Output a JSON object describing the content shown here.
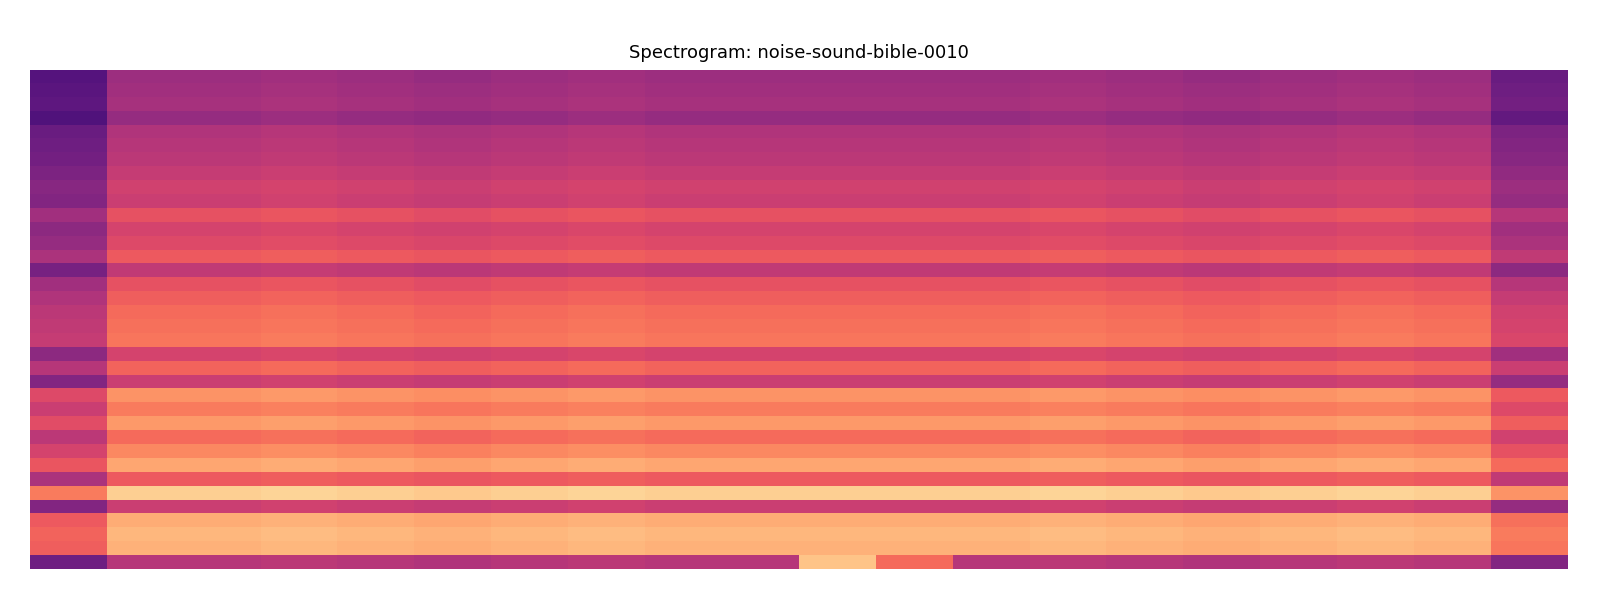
{
  "chart_data": {
    "type": "heatmap",
    "title": "Spectrogram: noise-sound-bible-0010",
    "tick_labels": false,
    "color_range": [
      -80,
      0
    ],
    "cells": [
      [
        -59,
        -45,
        -45,
        -44,
        -45,
        -46,
        -45,
        -44,
        -45,
        -45,
        -45,
        -45,
        -45,
        -44,
        -45,
        -46,
        -45,
        -44,
        -45,
        -55
      ],
      [
        -58,
        -44,
        -44,
        -43,
        -44,
        -45,
        -44,
        -43,
        -44,
        -44,
        -44,
        -44,
        -44,
        -43,
        -44,
        -45,
        -44,
        -43,
        -44,
        -54
      ],
      [
        -57,
        -43,
        -43,
        -42,
        -43,
        -44,
        -43,
        -42,
        -43,
        -43,
        -43,
        -43,
        -43,
        -42,
        -43,
        -44,
        -43,
        -42,
        -43,
        -53
      ],
      [
        -60,
        -46,
        -46,
        -45,
        -46,
        -47,
        -46,
        -45,
        -46,
        -46,
        -46,
        -46,
        -46,
        -45,
        -46,
        -47,
        -46,
        -45,
        -46,
        -56
      ],
      [
        -55,
        -41,
        -41,
        -40,
        -41,
        -42,
        -41,
        -40,
        -41,
        -41,
        -41,
        -41,
        -41,
        -40,
        -41,
        -42,
        -41,
        -40,
        -41,
        -51
      ],
      [
        -54,
        -40,
        -40,
        -39,
        -40,
        -41,
        -40,
        -39,
        -40,
        -40,
        -40,
        -40,
        -40,
        -39,
        -40,
        -41,
        -40,
        -39,
        -40,
        -50
      ],
      [
        -53,
        -39,
        -39,
        -38,
        -39,
        -40,
        -39,
        -38,
        -39,
        -39,
        -39,
        -39,
        -39,
        -38,
        -39,
        -40,
        -39,
        -38,
        -39,
        -49
      ],
      [
        -51,
        -37,
        -37,
        -36,
        -37,
        -38,
        -37,
        -36,
        -37,
        -37,
        -37,
        -37,
        -37,
        -36,
        -37,
        -38,
        -37,
        -36,
        -37,
        -47
      ],
      [
        -49,
        -35,
        -35,
        -34,
        -35,
        -36,
        -35,
        -34,
        -35,
        -35,
        -35,
        -35,
        -35,
        -34,
        -35,
        -36,
        -35,
        -34,
        -35,
        -45
      ],
      [
        -50,
        -36,
        -36,
        -35,
        -36,
        -37,
        -36,
        -35,
        -36,
        -36,
        -36,
        -36,
        -36,
        -35,
        -36,
        -37,
        -36,
        -35,
        -36,
        -46
      ],
      [
        -44,
        -30,
        -30,
        -29,
        -30,
        -31,
        -30,
        -29,
        -30,
        -30,
        -30,
        -30,
        -30,
        -29,
        -30,
        -31,
        -30,
        -29,
        -30,
        -40
      ],
      [
        -48,
        -34,
        -34,
        -33,
        -34,
        -35,
        -34,
        -33,
        -34,
        -34,
        -34,
        -34,
        -34,
        -33,
        -34,
        -35,
        -34,
        -33,
        -34,
        -44
      ],
      [
        -46,
        -32,
        -32,
        -31,
        -32,
        -33,
        -32,
        -31,
        -32,
        -32,
        -32,
        -32,
        -32,
        -31,
        -32,
        -33,
        -32,
        -31,
        -32,
        -42
      ],
      [
        -42,
        -28,
        -28,
        -27,
        -28,
        -29,
        -28,
        -27,
        -28,
        -28,
        -28,
        -28,
        -28,
        -27,
        -28,
        -29,
        -28,
        -27,
        -28,
        -38
      ],
      [
        -52,
        -38,
        -38,
        -37,
        -38,
        -39,
        -38,
        -37,
        -38,
        -38,
        -38,
        -38,
        -38,
        -37,
        -38,
        -39,
        -38,
        -37,
        -38,
        -48
      ],
      [
        -44,
        -30,
        -30,
        -29,
        -30,
        -31,
        -30,
        -29,
        -30,
        -30,
        -30,
        -30,
        -30,
        -29,
        -30,
        -31,
        -30,
        -29,
        -30,
        -40
      ],
      [
        -41,
        -27,
        -27,
        -26,
        -27,
        -28,
        -27,
        -26,
        -27,
        -27,
        -27,
        -27,
        -27,
        -26,
        -27,
        -28,
        -27,
        -26,
        -27,
        -37
      ],
      [
        -39,
        -25,
        -25,
        -24,
        -25,
        -26,
        -25,
        -24,
        -25,
        -25,
        -25,
        -25,
        -25,
        -24,
        -25,
        -26,
        -25,
        -24,
        -25,
        -35
      ],
      [
        -38,
        -24,
        -24,
        -23,
        -24,
        -25,
        -24,
        -23,
        -24,
        -24,
        -24,
        -24,
        -24,
        -23,
        -24,
        -25,
        -24,
        -23,
        -24,
        -34
      ],
      [
        -37,
        -23,
        -23,
        -22,
        -23,
        -24,
        -23,
        -22,
        -23,
        -23,
        -23,
        -23,
        -23,
        -22,
        -23,
        -24,
        -23,
        -22,
        -23,
        -33
      ],
      [
        -48,
        -34,
        -34,
        -33,
        -34,
        -35,
        -34,
        -33,
        -34,
        -34,
        -34,
        -34,
        -34,
        -33,
        -34,
        -35,
        -34,
        -33,
        -34,
        -44
      ],
      [
        -40,
        -26,
        -26,
        -25,
        -26,
        -27,
        -26,
        -25,
        -26,
        -26,
        -26,
        -26,
        -26,
        -25,
        -26,
        -27,
        -26,
        -25,
        -26,
        -36
      ],
      [
        -50,
        -36,
        -36,
        -35,
        -36,
        -37,
        -36,
        -35,
        -36,
        -36,
        -36,
        -36,
        -36,
        -35,
        -36,
        -37,
        -36,
        -35,
        -36,
        -46
      ],
      [
        -32,
        -18,
        -18,
        -17,
        -18,
        -19,
        -18,
        -17,
        -18,
        -18,
        -18,
        -18,
        -18,
        -17,
        -18,
        -19,
        -18,
        -17,
        -18,
        -28
      ],
      [
        -36,
        -22,
        -22,
        -21,
        -22,
        -23,
        -22,
        -21,
        -22,
        -22,
        -22,
        -22,
        -22,
        -21,
        -22,
        -23,
        -22,
        -21,
        -22,
        -32
      ],
      [
        -31,
        -17,
        -17,
        -16,
        -17,
        -18,
        -17,
        -16,
        -17,
        -17,
        -17,
        -17,
        -17,
        -16,
        -17,
        -18,
        -17,
        -16,
        -17,
        -27
      ],
      [
        -39,
        -25,
        -25,
        -24,
        -25,
        -26,
        -25,
        -24,
        -25,
        -25,
        -25,
        -25,
        -25,
        -24,
        -25,
        -26,
        -25,
        -24,
        -25,
        -35
      ],
      [
        -34,
        -20,
        -20,
        -19,
        -20,
        -21,
        -20,
        -19,
        -20,
        -20,
        -20,
        -20,
        -20,
        -19,
        -20,
        -21,
        -20,
        -19,
        -20,
        -30
      ],
      [
        -29,
        -15,
        -15,
        -14,
        -15,
        -16,
        -15,
        -14,
        -15,
        -15,
        -15,
        -15,
        -15,
        -14,
        -15,
        -16,
        -15,
        -14,
        -15,
        -25
      ],
      [
        -42,
        -28,
        -28,
        -27,
        -28,
        -29,
        -28,
        -27,
        -28,
        -28,
        -28,
        -28,
        -28,
        -27,
        -28,
        -29,
        -28,
        -27,
        -28,
        -38
      ],
      [
        -22,
        -8,
        -8,
        -7,
        -8,
        -9,
        -8,
        -7,
        -8,
        -8,
        -8,
        -8,
        -8,
        -7,
        -8,
        -9,
        -8,
        -7,
        -8,
        -18
      ],
      [
        -50,
        -36,
        -36,
        -35,
        -36,
        -37,
        -36,
        -35,
        -36,
        -36,
        -36,
        -36,
        -36,
        -35,
        -36,
        -37,
        -36,
        -35,
        -36,
        -46
      ],
      [
        -28,
        -14,
        -14,
        -13,
        -14,
        -15,
        -14,
        -13,
        -14,
        -14,
        -14,
        -14,
        -14,
        -13,
        -14,
        -15,
        -14,
        -13,
        -14,
        -24
      ],
      [
        -26,
        -12,
        -12,
        -11,
        -12,
        -13,
        -12,
        -11,
        -12,
        -12,
        -12,
        -12,
        -12,
        -11,
        -12,
        -13,
        -12,
        -11,
        -12,
        -22
      ],
      [
        -27,
        -13,
        -13,
        -12,
        -13,
        -14,
        -13,
        -12,
        -13,
        -13,
        -13,
        -13,
        -13,
        -12,
        -13,
        -14,
        -13,
        -12,
        -13,
        -23
      ],
      [
        -54,
        -40,
        -40,
        -39,
        -40,
        -41,
        -40,
        -39,
        -40,
        -40,
        -10,
        -25,
        -40,
        -39,
        -40,
        -41,
        -40,
        -39,
        -40,
        -50
      ]
    ]
  }
}
